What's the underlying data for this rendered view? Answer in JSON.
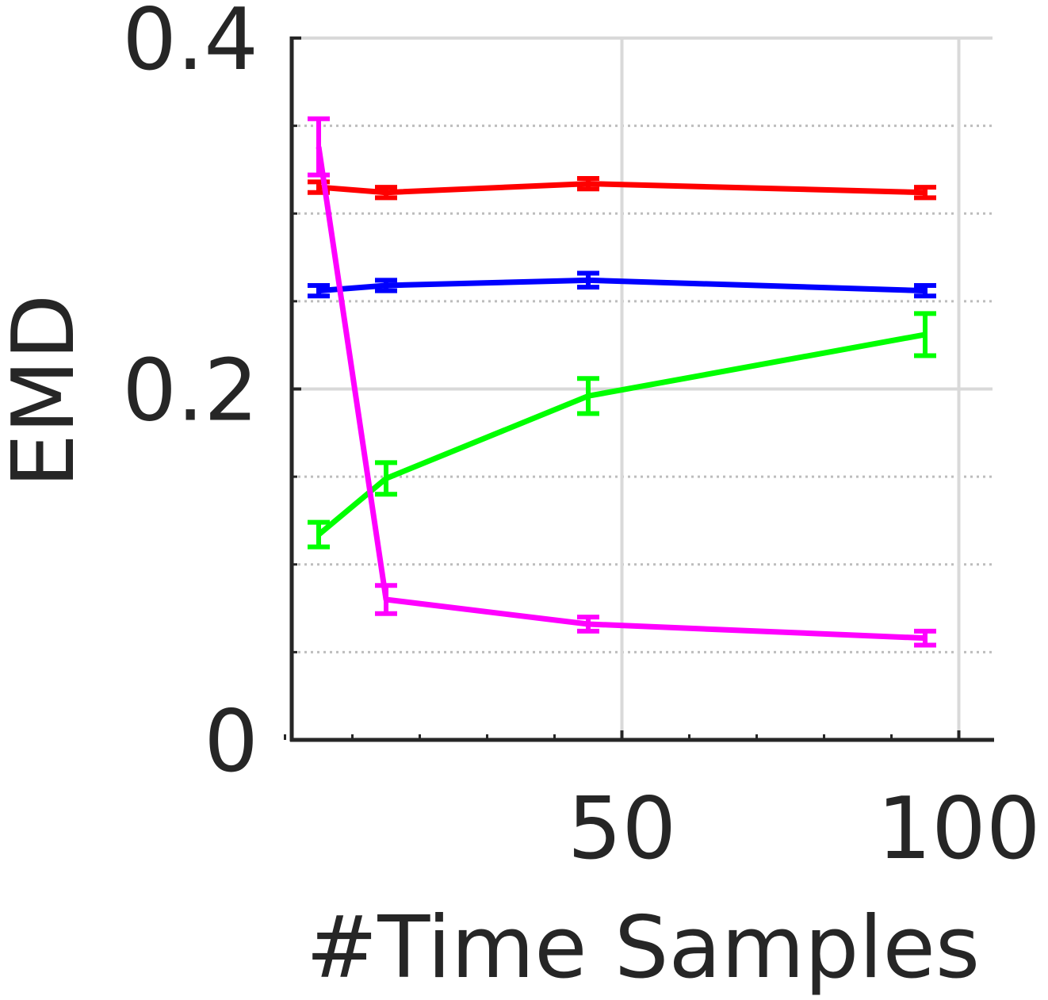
{
  "chart_data": {
    "type": "line",
    "xlabel": "#Time Samples",
    "ylabel": "EMD",
    "xlim": [
      1,
      105
    ],
    "ylim": [
      0,
      0.4
    ],
    "xticks": [
      50,
      100
    ],
    "xtick_labels": [
      "50",
      "100"
    ],
    "xminor_ticks": [
      0,
      10,
      20,
      30,
      40,
      60,
      70,
      80,
      90,
      100
    ],
    "yticks": [
      0,
      0.2,
      0.4
    ],
    "ytick_labels": [
      "0",
      "0.2",
      "0.4"
    ],
    "yminor_ticks": [
      0.05,
      0.1,
      0.15,
      0.25,
      0.3,
      0.35
    ],
    "grid": true,
    "legend": "none",
    "x": [
      5,
      15,
      45,
      95
    ],
    "series": [
      {
        "color": "#ff0000",
        "values": [
          0.315,
          0.312,
          0.317,
          0.312
        ],
        "errors": [
          0.003,
          0.003,
          0.003,
          0.003
        ]
      },
      {
        "color": "#0000ff",
        "values": [
          0.256,
          0.259,
          0.262,
          0.256
        ],
        "errors": [
          0.003,
          0.003,
          0.004,
          0.003
        ]
      },
      {
        "color": "#00ff00",
        "values": [
          0.117,
          0.149,
          0.196,
          0.231
        ],
        "errors": [
          0.007,
          0.009,
          0.01,
          0.012
        ]
      },
      {
        "color": "#ff00ff",
        "values": [
          0.338,
          0.08,
          0.066,
          0.058
        ],
        "errors": [
          0.016,
          0.008,
          0.004,
          0.004
        ]
      }
    ]
  }
}
